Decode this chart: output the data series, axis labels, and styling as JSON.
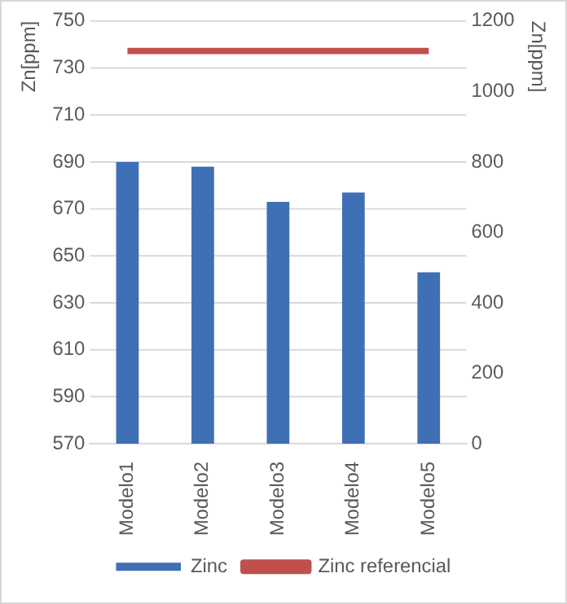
{
  "chart_data": {
    "type": "bar",
    "ylabel": "Zn[ppm]",
    "y2label": "Zn[ppm]",
    "categories": [
      "Modelo1",
      "Modelo2",
      "Modelo3",
      "Modelo4",
      "Modelo5"
    ],
    "series": [
      {
        "name": "Zinc",
        "color": "#3f6fb5",
        "values": [
          690,
          688,
          673,
          677,
          643
        ]
      },
      {
        "name": "Zinc referencial",
        "type": "line",
        "axis": "y2",
        "color": "#c0504d",
        "values": [
          1115,
          1115,
          1115,
          1115,
          1115
        ]
      }
    ],
    "ylim": [
      570,
      750
    ],
    "yticks": [
      570,
      590,
      610,
      630,
      650,
      670,
      690,
      710,
      730,
      750
    ],
    "y2lim": [
      0,
      1200
    ],
    "y2ticks": [
      0,
      200,
      400,
      600,
      800,
      1000,
      1200
    ],
    "grid": "y",
    "legend": "bottom",
    "marker": "none",
    "line_style": "solid"
  }
}
